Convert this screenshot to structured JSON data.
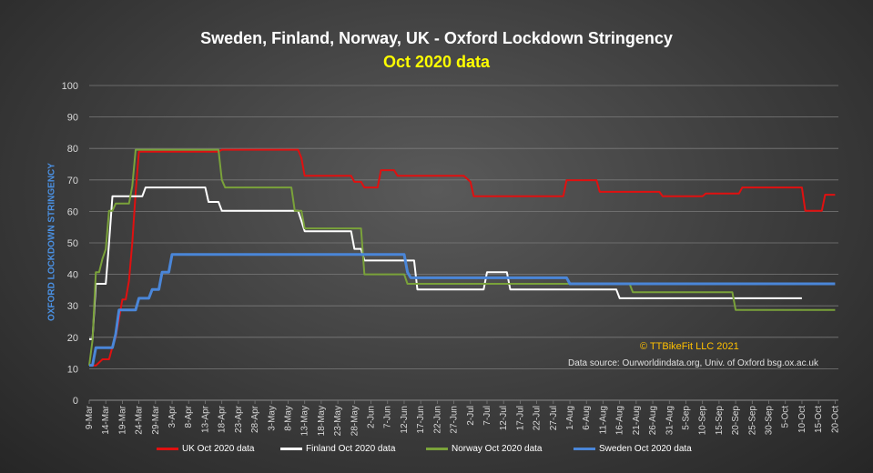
{
  "title": "Sweden, Finland, Norway, UK -  Oxford Lockdown Stringency",
  "subtitle": "Oct 2020 data",
  "copyright": "© TTBikeFit LLC 2021",
  "source": "Data source: Ourworldindata.org, Univ. of Oxford bsg.ox.ac.uk",
  "ylabel": "OXFORD LOCKDOWN STRINGENCY",
  "colors": {
    "uk": "#e01010",
    "finland": "#ffffff",
    "norway": "#7aa23a",
    "sweden": "#4a86d8",
    "grid": "#7a7a7a",
    "axis_text": "#d8d8d8"
  },
  "chart_data": {
    "type": "line",
    "title": "Sweden, Finland, Norway, UK -  Oxford Lockdown Stringency",
    "subtitle": "Oct 2020 data",
    "ylabel": "OXFORD LOCKDOWN STRINGENCY",
    "xlabel": "",
    "ylim": [
      0,
      100
    ],
    "yticks": [
      0,
      10,
      20,
      30,
      40,
      50,
      60,
      70,
      80,
      90,
      100
    ],
    "x_start_date": "2020-03-09",
    "x_end_date": "2020-10-21",
    "xticks": [
      "9-Mar",
      "14-Mar",
      "19-Mar",
      "24-Mar",
      "29-Mar",
      "3-Apr",
      "8-Apr",
      "13-Apr",
      "18-Apr",
      "23-Apr",
      "28-Apr",
      "3-May",
      "8-May",
      "13-May",
      "18-May",
      "23-May",
      "28-May",
      "2-Jun",
      "7-Jun",
      "12-Jun",
      "17-Jun",
      "22-Jun",
      "27-Jun",
      "2-Jul",
      "7-Jul",
      "12-Jul",
      "17-Jul",
      "22-Jul",
      "27-Jul",
      "1-Aug",
      "6-Aug",
      "11-Aug",
      "16-Aug",
      "21-Aug",
      "26-Aug",
      "31-Aug",
      "5-Sep",
      "10-Sep",
      "15-Sep",
      "20-Sep",
      "25-Sep",
      "30-Sep",
      "5-Oct",
      "10-Oct",
      "15-Oct",
      "20-Oct"
    ],
    "grid": true,
    "legend_position": "bottom",
    "series": [
      {
        "name": "UK Oct 2020 data",
        "color": "#e01010",
        "points": [
          [
            "9-Mar",
            11
          ],
          [
            "11-Mar",
            11
          ],
          [
            "12-Mar",
            12
          ],
          [
            "13-Mar",
            13
          ],
          [
            "15-Mar",
            13
          ],
          [
            "16-Mar",
            17
          ],
          [
            "17-Mar",
            20
          ],
          [
            "18-Mar",
            26
          ],
          [
            "19-Mar",
            32
          ],
          [
            "20-Mar",
            32
          ],
          [
            "21-Mar",
            38
          ],
          [
            "22-Mar",
            50
          ],
          [
            "23-Mar",
            66
          ],
          [
            "24-Mar",
            79
          ],
          [
            "17-Apr",
            79
          ],
          [
            "18-Apr",
            79.6
          ],
          [
            "11-May",
            79.6
          ],
          [
            "12-May",
            77
          ],
          [
            "13-May",
            71.3
          ],
          [
            "27-May",
            71.3
          ],
          [
            "28-May",
            69.4
          ],
          [
            "30-May",
            69.4
          ],
          [
            "31-May",
            67.6
          ],
          [
            "4-Jun",
            67.6
          ],
          [
            "5-Jun",
            73.1
          ],
          [
            "9-Jun",
            73.1
          ],
          [
            "10-Jun",
            71.3
          ],
          [
            "30-Jun",
            71.3
          ],
          [
            "2-Jul",
            69.4
          ],
          [
            "3-Jul",
            64.8
          ],
          [
            "26-Jul",
            64.8
          ],
          [
            "27-Jul",
            64.8
          ],
          [
            "29-Jul",
            64.8
          ],
          [
            "30-Jul",
            64.8
          ],
          [
            "31-Jul",
            69.9
          ],
          [
            "9-Aug",
            69.9
          ],
          [
            "10-Aug",
            66.2
          ],
          [
            "28-Aug",
            66.2
          ],
          [
            "29-Aug",
            64.8
          ],
          [
            "6-Sep",
            64.8
          ],
          [
            "7-Sep",
            64.8
          ],
          [
            "8-Sep",
            64.8
          ],
          [
            "10-Sep",
            64.8
          ],
          [
            "11-Sep",
            65.7
          ],
          [
            "21-Sep",
            65.7
          ],
          [
            "22-Sep",
            67.6
          ],
          [
            "10-Oct",
            67.6
          ],
          [
            "11-Oct",
            60.2
          ],
          [
            "16-Oct",
            60.2
          ],
          [
            "17-Oct",
            65.3
          ],
          [
            "20-Oct",
            65.3
          ]
        ]
      },
      {
        "name": "Finland Oct 2020 data",
        "color": "#ffffff",
        "points": [
          [
            "9-Mar",
            19.4
          ],
          [
            "10-Mar",
            19.4
          ],
          [
            "11-Mar",
            37
          ],
          [
            "13-Mar",
            37
          ],
          [
            "14-Mar",
            37
          ],
          [
            "15-Mar",
            50
          ],
          [
            "16-Mar",
            64.8
          ],
          [
            "24-Mar",
            64.8
          ],
          [
            "25-Mar",
            64.8
          ],
          [
            "26-Mar",
            67.6
          ],
          [
            "13-Apr",
            67.6
          ],
          [
            "14-Apr",
            63
          ],
          [
            "17-Apr",
            63
          ],
          [
            "18-Apr",
            60.2
          ],
          [
            "8-May",
            60.2
          ],
          [
            "11-May",
            60.2
          ],
          [
            "12-May",
            57
          ],
          [
            "13-May",
            53.7
          ],
          [
            "27-May",
            53.7
          ],
          [
            "28-May",
            48.1
          ],
          [
            "30-May",
            48.1
          ],
          [
            "31-May",
            44.4
          ],
          [
            "15-Jun",
            44.4
          ],
          [
            "16-Jun",
            35.2
          ],
          [
            "6-Jul",
            35.2
          ],
          [
            "7-Jul",
            40.7
          ],
          [
            "13-Jul",
            40.7
          ],
          [
            "14-Jul",
            35.2
          ],
          [
            "8-Aug",
            35.2
          ],
          [
            "9-Aug",
            35.2
          ],
          [
            "15-Aug",
            35.2
          ],
          [
            "16-Aug",
            32.4
          ],
          [
            "10-Oct",
            32.4
          ]
        ]
      },
      {
        "name": "Norway Oct 2020 data",
        "color": "#7aa23a",
        "points": [
          [
            "9-Mar",
            11
          ],
          [
            "10-Mar",
            19
          ],
          [
            "11-Mar",
            40.7
          ],
          [
            "12-Mar",
            40.7
          ],
          [
            "13-Mar",
            45
          ],
          [
            "14-Mar",
            48
          ],
          [
            "15-Mar",
            60.2
          ],
          [
            "16-Mar",
            60.2
          ],
          [
            "17-Mar",
            62.5
          ],
          [
            "21-Mar",
            62.5
          ],
          [
            "22-Mar",
            68
          ],
          [
            "23-Mar",
            79.6
          ],
          [
            "17-Apr",
            79.6
          ],
          [
            "18-Apr",
            70
          ],
          [
            "19-Apr",
            67.6
          ],
          [
            "9-May",
            67.6
          ],
          [
            "10-May",
            60.2
          ],
          [
            "12-May",
            60.2
          ],
          [
            "13-May",
            54.6
          ],
          [
            "30-May",
            54.6
          ],
          [
            "31-May",
            40
          ],
          [
            "12-Jun",
            40
          ],
          [
            "13-Jun",
            37
          ],
          [
            "30-Jul",
            37
          ],
          [
            "31-Jul",
            37
          ],
          [
            "19-Aug",
            37
          ],
          [
            "20-Aug",
            34.3
          ],
          [
            "19-Sep",
            34.3
          ],
          [
            "20-Sep",
            28.7
          ],
          [
            "20-Oct",
            28.7
          ]
        ]
      },
      {
        "name": "Sweden Oct 2020 data",
        "color": "#4a86d8",
        "points": [
          [
            "9-Mar",
            11.1
          ],
          [
            "10-Mar",
            11.1
          ],
          [
            "11-Mar",
            16.7
          ],
          [
            "16-Mar",
            16.7
          ],
          [
            "17-Mar",
            21
          ],
          [
            "18-Mar",
            28.7
          ],
          [
            "23-Mar",
            28.7
          ],
          [
            "24-Mar",
            32.4
          ],
          [
            "27-Mar",
            32.4
          ],
          [
            "28-Mar",
            35.2
          ],
          [
            "30-Mar",
            35.2
          ],
          [
            "31-Mar",
            40.7
          ],
          [
            "2-Apr",
            40.7
          ],
          [
            "3-Apr",
            46.3
          ],
          [
            "12-Jun",
            46.3
          ],
          [
            "13-Jun",
            40.7
          ],
          [
            "14-Jun",
            38.9
          ],
          [
            "31-Jul",
            38.9
          ],
          [
            "1-Aug",
            37
          ],
          [
            "20-Oct",
            37
          ]
        ]
      }
    ]
  },
  "legend": [
    {
      "label": "UK Oct 2020 data",
      "color": "#e01010"
    },
    {
      "label": "Finland Oct 2020 data",
      "color": "#ffffff"
    },
    {
      "label": "Norway Oct 2020 data",
      "color": "#7aa23a"
    },
    {
      "label": "Sweden Oct 2020 data",
      "color": "#4a86d8"
    }
  ]
}
